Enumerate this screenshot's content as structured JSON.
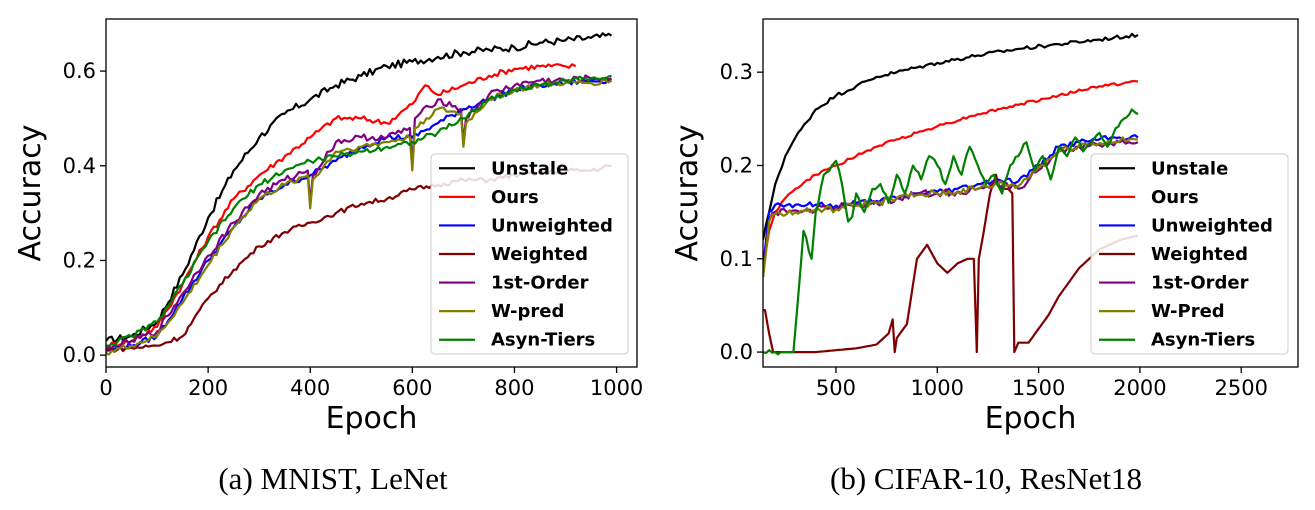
{
  "chart_data": [
    {
      "type": "line",
      "caption": "(a) MNIST, LeNet",
      "xlabel": "Epoch",
      "ylabel": "Accuracy",
      "xlim": [
        0,
        1040
      ],
      "ylim": [
        -0.025,
        0.71
      ],
      "xticks": [
        0,
        200,
        400,
        600,
        800,
        1000
      ],
      "xtick_labels": [
        "0",
        "200",
        "400",
        "600",
        "800",
        "1000"
      ],
      "yticks": [
        0.0,
        0.2,
        0.4,
        0.6
      ],
      "ytick_labels": [
        "0.0",
        "0.2",
        "0.4",
        "0.6"
      ],
      "grid": false,
      "legend_position": "center-right",
      "series": [
        {
          "name": "Unstale",
          "color": "#000000",
          "noise": 0.008,
          "x": [
            0,
            50,
            100,
            150,
            200,
            250,
            300,
            350,
            400,
            450,
            500,
            550,
            600,
            650,
            700,
            750,
            800,
            850,
            900,
            950,
            990
          ],
          "y": [
            0.03,
            0.04,
            0.07,
            0.17,
            0.29,
            0.39,
            0.46,
            0.51,
            0.54,
            0.57,
            0.59,
            0.61,
            0.62,
            0.63,
            0.64,
            0.645,
            0.65,
            0.66,
            0.665,
            0.67,
            0.675
          ]
        },
        {
          "name": "Ours",
          "color": "#ff0000",
          "noise": 0.006,
          "x": [
            0,
            50,
            100,
            150,
            200,
            250,
            300,
            350,
            400,
            450,
            500,
            550,
            600,
            625,
            650,
            700,
            750,
            800,
            850,
            900,
            920
          ],
          "y": [
            0.02,
            0.03,
            0.06,
            0.15,
            0.25,
            0.33,
            0.38,
            0.42,
            0.46,
            0.5,
            0.5,
            0.49,
            0.53,
            0.57,
            0.55,
            0.57,
            0.59,
            0.605,
            0.61,
            0.61,
            0.61
          ]
        },
        {
          "name": "Unweighted",
          "color": "#0000ff",
          "noise": 0.006,
          "x": [
            0,
            50,
            100,
            150,
            200,
            250,
            300,
            350,
            400,
            450,
            500,
            550,
            600,
            650,
            700,
            750,
            800,
            850,
            900,
            950,
            990
          ],
          "y": [
            0.01,
            0.02,
            0.04,
            0.12,
            0.2,
            0.27,
            0.33,
            0.36,
            0.38,
            0.41,
            0.44,
            0.46,
            0.46,
            0.49,
            0.52,
            0.54,
            0.56,
            0.57,
            0.575,
            0.58,
            0.58
          ]
        },
        {
          "name": "Weighted",
          "color": "#800000",
          "noise": 0.005,
          "x": [
            0,
            50,
            100,
            150,
            200,
            250,
            300,
            350,
            400,
            450,
            500,
            550,
            600,
            650,
            700,
            750,
            800,
            850,
            900,
            950,
            990
          ],
          "y": [
            0.01,
            0.015,
            0.02,
            0.04,
            0.12,
            0.18,
            0.23,
            0.26,
            0.28,
            0.3,
            0.32,
            0.33,
            0.35,
            0.36,
            0.37,
            0.37,
            0.38,
            0.385,
            0.39,
            0.39,
            0.4
          ]
        },
        {
          "name": "1st-Order",
          "color": "#800080",
          "noise": 0.007,
          "x": [
            0,
            50,
            100,
            150,
            200,
            250,
            300,
            350,
            395,
            400,
            405,
            450,
            500,
            550,
            595,
            600,
            605,
            650,
            695,
            700,
            705,
            750,
            800,
            850,
            900,
            950,
            990
          ],
          "y": [
            0.01,
            0.03,
            0.05,
            0.13,
            0.21,
            0.28,
            0.34,
            0.37,
            0.39,
            0.32,
            0.38,
            0.45,
            0.46,
            0.46,
            0.48,
            0.4,
            0.5,
            0.54,
            0.52,
            0.45,
            0.5,
            0.55,
            0.57,
            0.58,
            0.58,
            0.585,
            0.585
          ]
        },
        {
          "name": "W-pred",
          "color": "#808000",
          "noise": 0.006,
          "x": [
            0,
            50,
            100,
            150,
            200,
            250,
            300,
            350,
            395,
            400,
            405,
            450,
            500,
            550,
            595,
            600,
            605,
            650,
            695,
            700,
            705,
            750,
            800,
            850,
            900,
            950,
            990
          ],
          "y": [
            0.005,
            0.02,
            0.04,
            0.11,
            0.19,
            0.27,
            0.33,
            0.36,
            0.38,
            0.31,
            0.37,
            0.43,
            0.44,
            0.45,
            0.46,
            0.39,
            0.48,
            0.52,
            0.51,
            0.44,
            0.49,
            0.54,
            0.56,
            0.57,
            0.575,
            0.575,
            0.58
          ]
        },
        {
          "name": "Asyn-Tiers",
          "color": "#008000",
          "noise": 0.006,
          "x": [
            0,
            50,
            100,
            150,
            200,
            250,
            300,
            350,
            400,
            450,
            500,
            550,
            600,
            650,
            700,
            750,
            800,
            850,
            900,
            950,
            990
          ],
          "y": [
            0.02,
            0.04,
            0.07,
            0.15,
            0.24,
            0.31,
            0.36,
            0.39,
            0.41,
            0.42,
            0.43,
            0.44,
            0.45,
            0.47,
            0.5,
            0.54,
            0.56,
            0.57,
            0.58,
            0.585,
            0.59
          ]
        }
      ]
    },
    {
      "type": "line",
      "caption": "(b) CIFAR-10, ResNet18",
      "xlabel": "Epoch",
      "ylabel": "Accuracy",
      "xlim": [
        140,
        2780
      ],
      "ylim": [
        -0.016,
        0.357
      ],
      "xticks": [
        500,
        1000,
        1500,
        2000,
        2500
      ],
      "xtick_labels": [
        "500",
        "1000",
        "1500",
        "2000",
        "2500"
      ],
      "yticks": [
        0.0,
        0.1,
        0.2,
        0.3
      ],
      "ytick_labels": [
        "0.0",
        "0.1",
        "0.2",
        "0.3"
      ],
      "grid": false,
      "legend_position": "center-right",
      "series": [
        {
          "name": "Unstale",
          "color": "#000000",
          "noise": 0.002,
          "x": [
            140,
            170,
            200,
            250,
            300,
            400,
            500,
            600,
            700,
            800,
            900,
            1000,
            1200,
            1400,
            1600,
            1800,
            1990
          ],
          "y": [
            0.12,
            0.15,
            0.18,
            0.21,
            0.23,
            0.26,
            0.275,
            0.285,
            0.295,
            0.3,
            0.305,
            0.31,
            0.318,
            0.325,
            0.33,
            0.335,
            0.34
          ]
        },
        {
          "name": "Ours",
          "color": "#ff0000",
          "noise": 0.0015,
          "x": [
            140,
            170,
            200,
            250,
            300,
            400,
            500,
            600,
            700,
            800,
            900,
            1000,
            1200,
            1400,
            1600,
            1800,
            1990
          ],
          "y": [
            0.09,
            0.13,
            0.15,
            0.165,
            0.175,
            0.19,
            0.2,
            0.21,
            0.22,
            0.228,
            0.235,
            0.242,
            0.255,
            0.265,
            0.275,
            0.285,
            0.29
          ]
        },
        {
          "name": "Unweighted",
          "color": "#0000ff",
          "noise": 0.003,
          "x": [
            140,
            170,
            200,
            300,
            400,
            500,
            600,
            700,
            800,
            900,
            1000,
            1100,
            1200,
            1300,
            1400,
            1500,
            1600,
            1700,
            1800,
            1900,
            1990
          ],
          "y": [
            0.09,
            0.15,
            0.158,
            0.158,
            0.158,
            0.157,
            0.16,
            0.162,
            0.165,
            0.17,
            0.172,
            0.175,
            0.18,
            0.185,
            0.183,
            0.2,
            0.22,
            0.225,
            0.228,
            0.23,
            0.23
          ]
        },
        {
          "name": "Weighted",
          "color": "#800000",
          "noise": 0.0,
          "x": [
            140,
            150,
            170,
            190,
            200,
            250,
            300,
            400,
            500,
            600,
            700,
            760,
            780,
            790,
            800,
            850,
            900,
            950,
            1000,
            1050,
            1100,
            1150,
            1180,
            1195,
            1205,
            1230,
            1260,
            1290,
            1300,
            1320,
            1350,
            1370,
            1380,
            1390,
            1400,
            1450,
            1500,
            1550,
            1600,
            1700,
            1800,
            1900,
            1990
          ],
          "y": [
            0.045,
            0.045,
            0.02,
            0.0,
            0.0,
            0.0,
            0.0,
            0.0,
            0.002,
            0.004,
            0.008,
            0.02,
            0.035,
            0.0,
            0.015,
            0.03,
            0.1,
            0.115,
            0.095,
            0.085,
            0.095,
            0.1,
            0.1,
            0.0,
            0.1,
            0.13,
            0.17,
            0.19,
            0.18,
            0.175,
            0.175,
            0.17,
            0.0,
            0.005,
            0.01,
            0.01,
            0.025,
            0.04,
            0.06,
            0.09,
            0.11,
            0.12,
            0.125
          ]
        },
        {
          "name": "1st-Order",
          "color": "#800080",
          "noise": 0.004,
          "x": [
            140,
            170,
            200,
            300,
            400,
            500,
            600,
            700,
            800,
            900,
            1000,
            1100,
            1200,
            1300,
            1400,
            1500,
            1600,
            1700,
            1800,
            1900,
            1990
          ],
          "y": [
            0.08,
            0.14,
            0.15,
            0.152,
            0.153,
            0.155,
            0.158,
            0.16,
            0.165,
            0.17,
            0.17,
            0.172,
            0.175,
            0.18,
            0.175,
            0.195,
            0.215,
            0.22,
            0.222,
            0.225,
            0.225
          ]
        },
        {
          "name": "W-Pred",
          "color": "#808000",
          "noise": 0.004,
          "x": [
            140,
            170,
            200,
            300,
            400,
            500,
            600,
            700,
            800,
            900,
            1000,
            1100,
            1200,
            1300,
            1400,
            1500,
            1600,
            1700,
            1800,
            1900,
            1990
          ],
          "y": [
            0.08,
            0.14,
            0.148,
            0.15,
            0.152,
            0.153,
            0.157,
            0.16,
            0.165,
            0.168,
            0.17,
            0.172,
            0.175,
            0.18,
            0.178,
            0.198,
            0.215,
            0.222,
            0.224,
            0.226,
            0.228
          ]
        },
        {
          "name": "Asyn-Tiers",
          "color": "#008000",
          "noise": 0.003,
          "x": [
            140,
            200,
            240,
            260,
            275,
            290,
            340,
            380,
            400,
            440,
            480,
            500,
            530,
            560,
            580,
            600,
            640,
            680,
            720,
            760,
            800,
            840,
            880,
            920,
            960,
            1000,
            1040,
            1080,
            1120,
            1160,
            1200,
            1240,
            1280,
            1320,
            1360,
            1400,
            1440,
            1480,
            1520,
            1560,
            1600,
            1640,
            1680,
            1720,
            1760,
            1800,
            1840,
            1880,
            1920,
            1960,
            1990
          ],
          "y": [
            0.0,
            0.0,
            0.0,
            0.0,
            0.0,
            0.0,
            0.13,
            0.1,
            0.15,
            0.19,
            0.2,
            0.205,
            0.18,
            0.14,
            0.145,
            0.17,
            0.15,
            0.175,
            0.18,
            0.16,
            0.19,
            0.17,
            0.2,
            0.185,
            0.21,
            0.2,
            0.18,
            0.21,
            0.19,
            0.22,
            0.2,
            0.18,
            0.19,
            0.17,
            0.2,
            0.21,
            0.225,
            0.195,
            0.21,
            0.185,
            0.22,
            0.21,
            0.23,
            0.215,
            0.225,
            0.235,
            0.22,
            0.24,
            0.25,
            0.26,
            0.255
          ]
        }
      ]
    }
  ]
}
